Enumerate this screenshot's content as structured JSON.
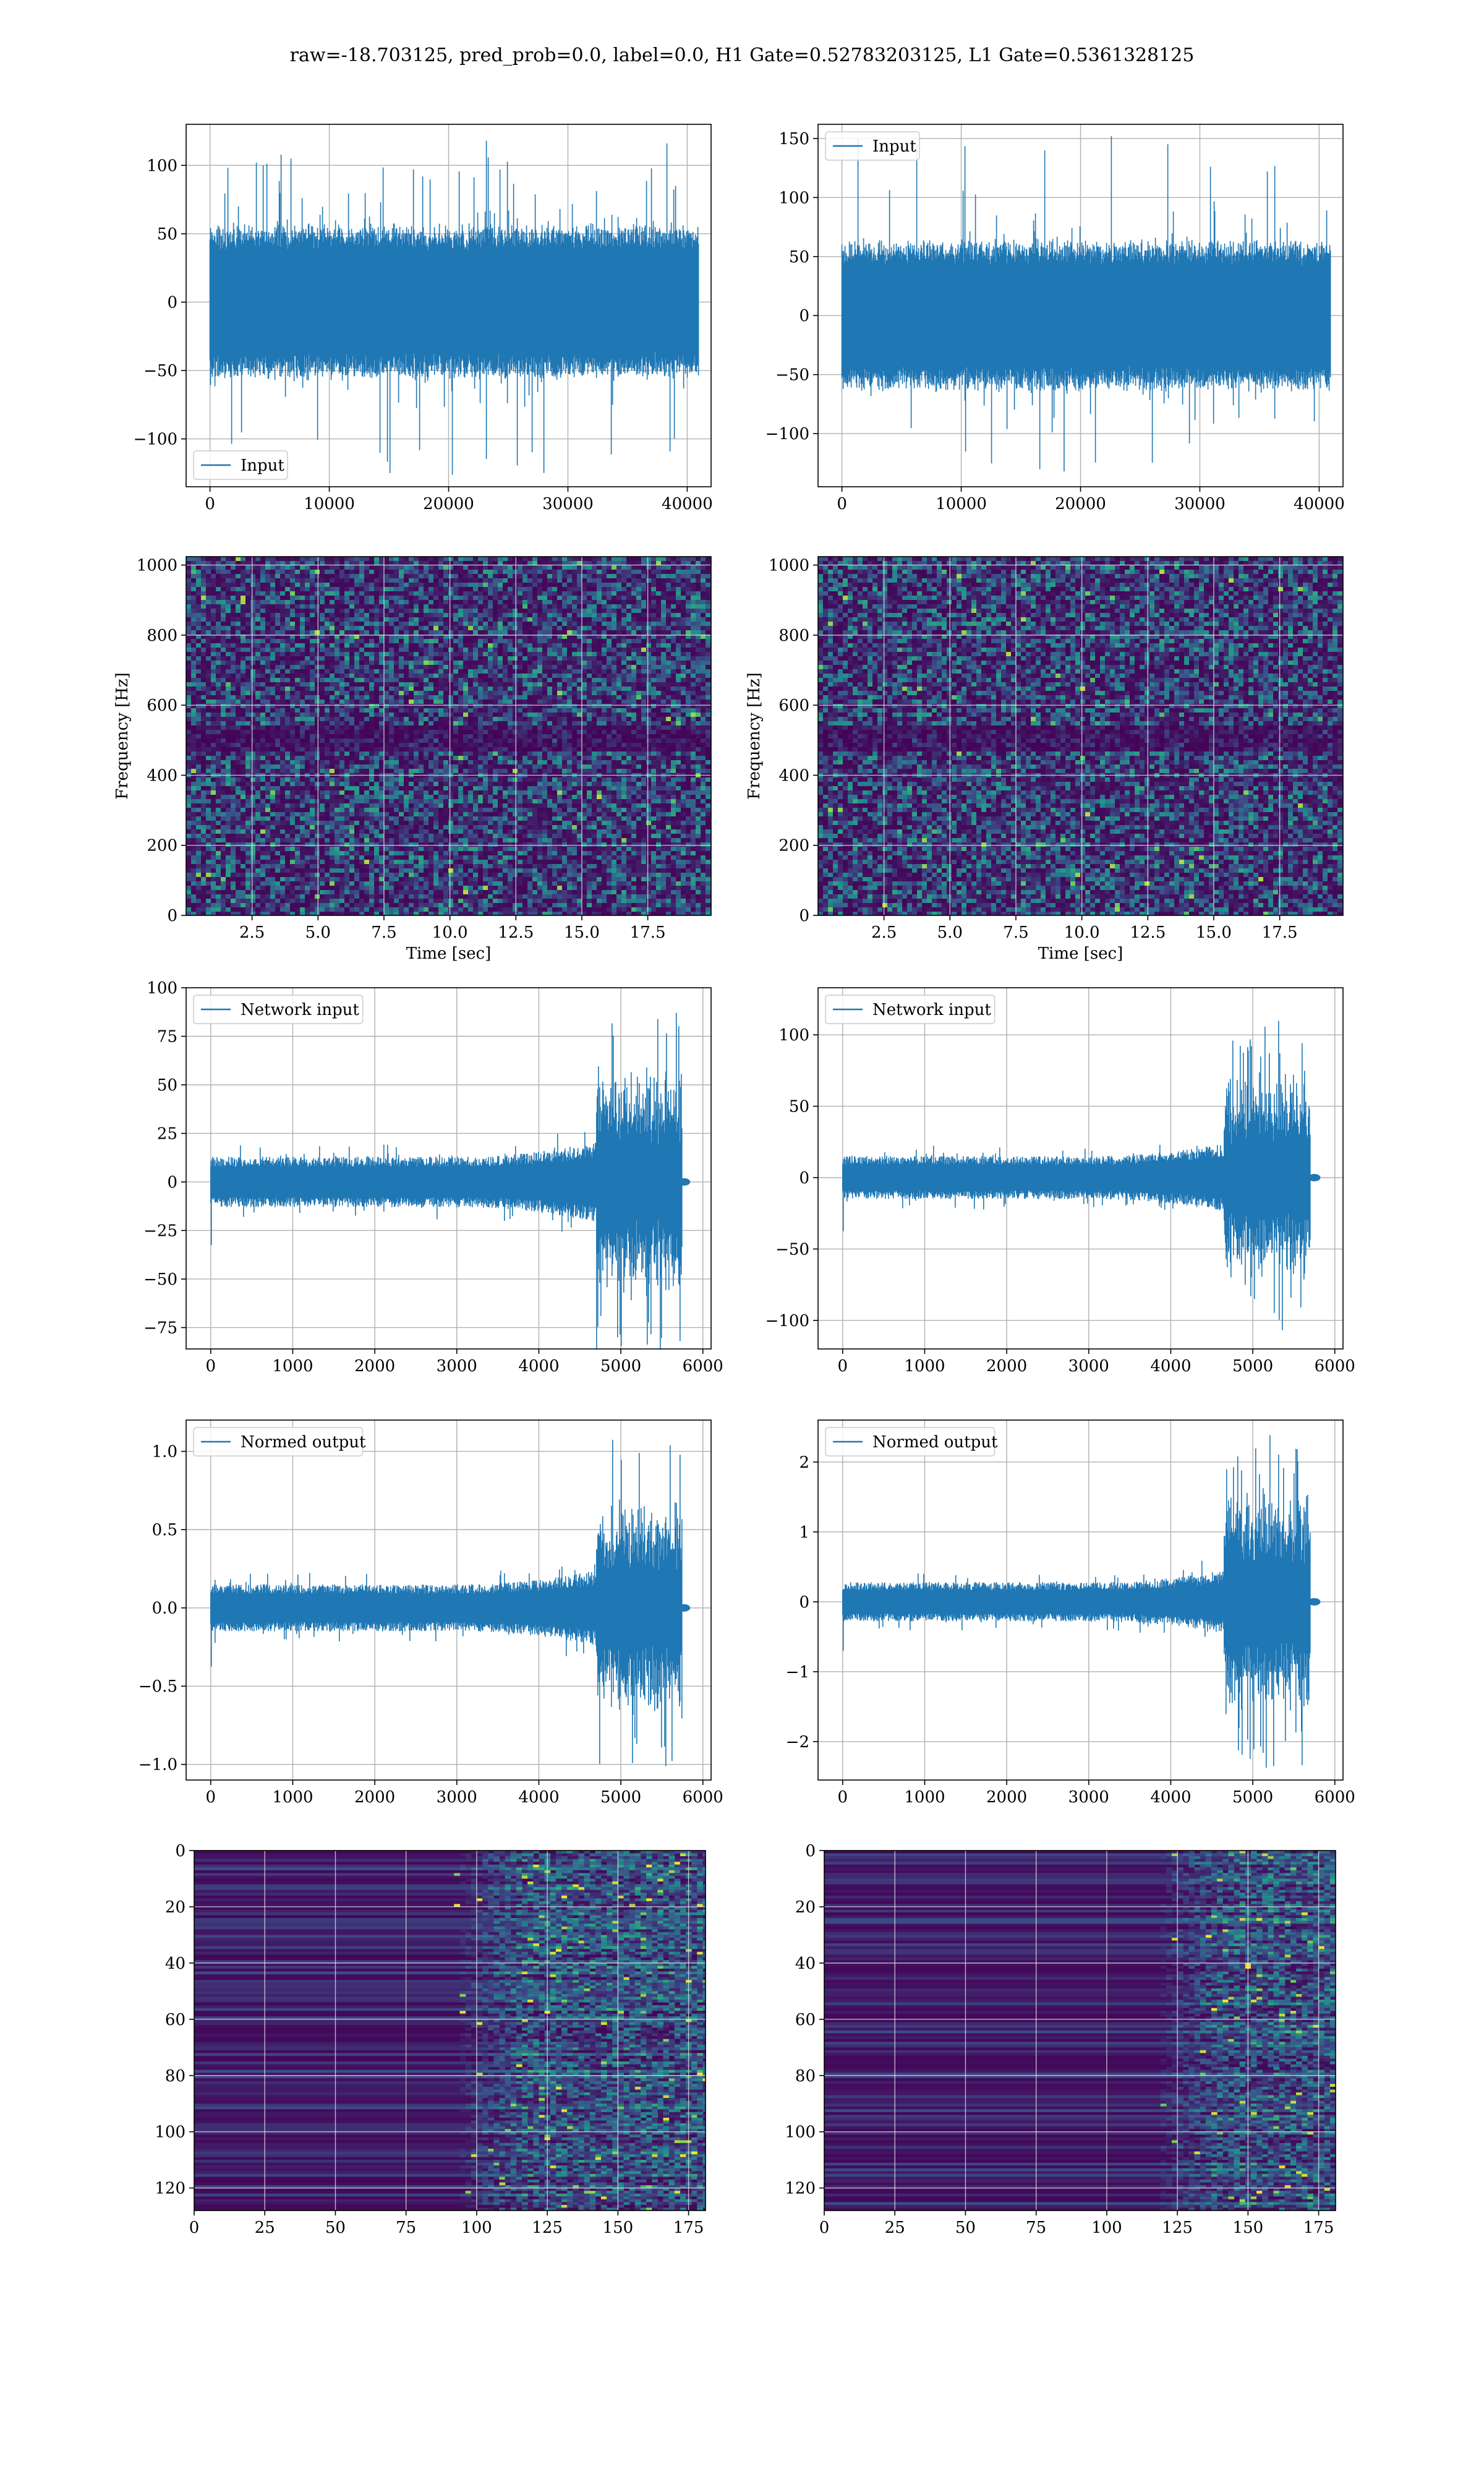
{
  "figure": {
    "title": "raw=-18.703125, pred_prob=0.0, label=0.0, H1 Gate=0.52783203125, L1 Gate=0.5361328125",
    "series_color": "#1f77b4",
    "colormap": "viridis",
    "grid": true
  },
  "chart_data": [
    {
      "id": "h1-input",
      "type": "line",
      "series": [
        {
          "name": "Input"
        }
      ],
      "xlim": [
        -2000,
        42000
      ],
      "ylim": [
        -135,
        130
      ],
      "xticks": [
        0,
        10000,
        20000,
        30000,
        40000
      ],
      "yticks": [
        -100,
        -50,
        0,
        50,
        100
      ],
      "legend_position": "lower-left",
      "signal": {
        "kind": "noise",
        "n_samples": 40960,
        "typical_amplitude": 55,
        "peak_max": 118,
        "peak_min": -125
      }
    },
    {
      "id": "l1-input",
      "type": "line",
      "series": [
        {
          "name": "Input"
        }
      ],
      "xlim": [
        -2000,
        42000
      ],
      "ylim": [
        -145,
        162
      ],
      "xticks": [
        0,
        10000,
        20000,
        30000,
        40000
      ],
      "yticks": [
        -100,
        -50,
        0,
        50,
        100,
        150
      ],
      "legend_position": "upper-left",
      "signal": {
        "kind": "noise",
        "n_samples": 40960,
        "typical_amplitude": 62,
        "peak_max": 152,
        "peak_min": -132
      }
    },
    {
      "id": "h1-spectrogram",
      "type": "heatmap",
      "xlabel": "Time [sec]",
      "ylabel": "Frequency [Hz]",
      "xlim": [
        0,
        19.9
      ],
      "ylim": [
        0,
        1024
      ],
      "xticks": [
        2.5,
        5.0,
        7.5,
        10.0,
        12.5,
        15.0,
        17.5
      ],
      "xtick_labels": [
        "2.5",
        "5.0",
        "7.5",
        "10.0",
        "12.5",
        "15.0",
        "17.5"
      ],
      "yticks": [
        0,
        200,
        400,
        600,
        800,
        1000
      ],
      "dark_band_hz": [
        480,
        530
      ]
    },
    {
      "id": "l1-spectrogram",
      "type": "heatmap",
      "xlabel": "Time [sec]",
      "ylabel": "Frequency [Hz]",
      "xlim": [
        0,
        19.9
      ],
      "ylim": [
        0,
        1024
      ],
      "xticks": [
        2.5,
        5.0,
        7.5,
        10.0,
        12.5,
        15.0,
        17.5
      ],
      "xtick_labels": [
        "2.5",
        "5.0",
        "7.5",
        "10.0",
        "12.5",
        "15.0",
        "17.5"
      ],
      "yticks": [
        0,
        200,
        400,
        600,
        800,
        1000
      ],
      "dark_band_hz": [
        480,
        530
      ]
    },
    {
      "id": "h1-network-input",
      "type": "line",
      "series": [
        {
          "name": "Network input"
        }
      ],
      "xlim": [
        -300,
        6100
      ],
      "ylim": [
        -86,
        100
      ],
      "xticks": [
        0,
        1000,
        2000,
        3000,
        4000,
        5000,
        6000
      ],
      "yticks": [
        -75,
        -50,
        -25,
        0,
        25,
        50,
        75,
        100
      ],
      "legend_position": "upper-left",
      "signal": {
        "kind": "chirp",
        "n_samples": 5800,
        "base_amplitude": 13,
        "burst_start": 4700,
        "burst_end": 5750,
        "burst_amplitude": 90,
        "tail_end": 5800
      }
    },
    {
      "id": "l1-network-input",
      "type": "line",
      "series": [
        {
          "name": "Network input"
        }
      ],
      "xlim": [
        -300,
        6100
      ],
      "ylim": [
        -120,
        133
      ],
      "xticks": [
        0,
        1000,
        2000,
        3000,
        4000,
        5000,
        6000
      ],
      "yticks": [
        -100,
        -50,
        0,
        50,
        100
      ],
      "legend_position": "upper-left",
      "signal": {
        "kind": "chirp",
        "n_samples": 5800,
        "base_amplitude": 15,
        "burst_start": 4650,
        "burst_end": 5700,
        "burst_amplitude": 110,
        "tail_end": 5780
      }
    },
    {
      "id": "h1-normed-output",
      "type": "line",
      "series": [
        {
          "name": "Normed output"
        }
      ],
      "xlim": [
        -300,
        6100
      ],
      "ylim": [
        -1.1,
        1.2
      ],
      "xticks": [
        0,
        1000,
        2000,
        3000,
        4000,
        5000,
        6000
      ],
      "yticks": [
        -1.0,
        -0.5,
        0.0,
        0.5,
        1.0
      ],
      "ytick_labels": [
        "−1.0",
        "−0.5",
        "0.0",
        "0.5",
        "1.0"
      ],
      "legend_position": "upper-left",
      "signal": {
        "kind": "chirp",
        "n_samples": 5800,
        "base_amplitude": 0.15,
        "burst_start": 4700,
        "burst_end": 5750,
        "burst_amplitude": 1.08,
        "tail_end": 5800
      }
    },
    {
      "id": "l1-normed-output",
      "type": "line",
      "series": [
        {
          "name": "Normed output"
        }
      ],
      "xlim": [
        -300,
        6100
      ],
      "ylim": [
        -2.55,
        2.6
      ],
      "xticks": [
        0,
        1000,
        2000,
        3000,
        4000,
        5000,
        6000
      ],
      "yticks": [
        -2,
        -1,
        0,
        1,
        2
      ],
      "legend_position": "upper-left",
      "signal": {
        "kind": "chirp",
        "n_samples": 5800,
        "base_amplitude": 0.28,
        "burst_start": 4650,
        "burst_end": 5700,
        "burst_amplitude": 2.4,
        "tail_end": 5780
      }
    },
    {
      "id": "h1-feature-map",
      "type": "heatmap",
      "xlim": [
        0,
        181
      ],
      "ylim": [
        128,
        0
      ],
      "xticks": [
        0,
        25,
        50,
        75,
        100,
        125,
        150,
        175
      ],
      "yticks": [
        0,
        20,
        40,
        60,
        80,
        100,
        120
      ],
      "activity_onset": 100
    },
    {
      "id": "l1-feature-map",
      "type": "heatmap",
      "xlim": [
        0,
        181
      ],
      "ylim": [
        128,
        0
      ],
      "xticks": [
        0,
        25,
        50,
        75,
        100,
        125,
        150,
        175
      ],
      "yticks": [
        0,
        20,
        40,
        60,
        80,
        100,
        120
      ],
      "activity_onset": 125
    }
  ]
}
